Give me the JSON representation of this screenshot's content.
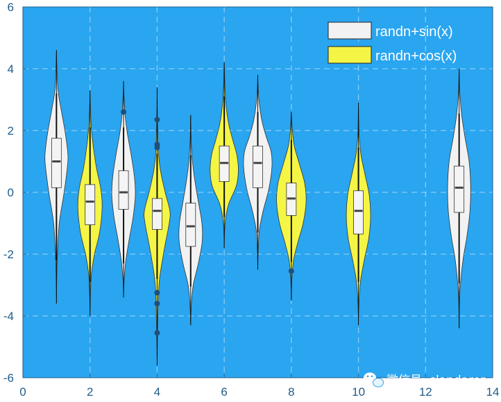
{
  "chart_data": {
    "type": "violin",
    "title": "",
    "xlabel": "",
    "ylabel": "",
    "xlim": [
      0,
      14
    ],
    "ylim": [
      -6,
      6
    ],
    "x_ticks": [
      "0",
      "2",
      "4",
      "6",
      "8",
      "10",
      "12",
      "14"
    ],
    "y_ticks": [
      "6",
      "4",
      "2",
      "0",
      "-2",
      "-4",
      "-6"
    ],
    "grid": true,
    "background_color": "#2aa5f0",
    "legend_position": "top-right",
    "series": [
      {
        "name": "randn+sin(x)",
        "color": "#f2f2f2"
      },
      {
        "name": "randn+cos(x)",
        "color": "#f5f546"
      }
    ],
    "violins": [
      {
        "x": 1,
        "series": 0,
        "min": -3.6,
        "max": 4.6,
        "q1": 0.15,
        "median": 1.0,
        "q3": 1.75,
        "wlo": -2.2,
        "whi": 3.2,
        "width": 0.38,
        "outliers": [],
        "profile": [
          [
            -3.6,
            0.0
          ],
          [
            -2.6,
            0.03
          ],
          [
            -2.0,
            0.08
          ],
          [
            -1.0,
            0.22
          ],
          [
            0.0,
            0.6
          ],
          [
            0.8,
            0.85
          ],
          [
            1.2,
            0.9
          ],
          [
            1.9,
            0.7
          ],
          [
            2.6,
            0.4
          ],
          [
            3.3,
            0.12
          ],
          [
            4.0,
            0.04
          ],
          [
            4.6,
            0.0
          ]
        ]
      },
      {
        "x": 2,
        "series": 1,
        "min": -4.0,
        "max": 3.3,
        "q1": -1.05,
        "median": -0.3,
        "q3": 0.25,
        "wlo": -2.9,
        "whi": 2.1,
        "width": 0.38,
        "outliers": [],
        "profile": [
          [
            -4.0,
            0.0
          ],
          [
            -3.2,
            0.04
          ],
          [
            -2.6,
            0.12
          ],
          [
            -2.0,
            0.35
          ],
          [
            -1.3,
            0.75
          ],
          [
            -0.5,
            0.95
          ],
          [
            0.1,
            0.85
          ],
          [
            0.8,
            0.5
          ],
          [
            1.5,
            0.25
          ],
          [
            2.1,
            0.1
          ],
          [
            2.8,
            0.03
          ],
          [
            3.3,
            0.0
          ]
        ]
      },
      {
        "x": 3,
        "series": 0,
        "min": -3.4,
        "max": 3.6,
        "q1": -0.55,
        "median": 0.0,
        "q3": 0.7,
        "wlo": -2.3,
        "whi": 2.1,
        "width": 0.38,
        "outliers": [
          2.6
        ],
        "profile": [
          [
            -3.4,
            0.0
          ],
          [
            -2.8,
            0.05
          ],
          [
            -2.2,
            0.18
          ],
          [
            -1.5,
            0.45
          ],
          [
            -0.8,
            0.75
          ],
          [
            -0.1,
            0.92
          ],
          [
            0.5,
            0.85
          ],
          [
            1.2,
            0.6
          ],
          [
            1.9,
            0.3
          ],
          [
            2.5,
            0.12
          ],
          [
            3.1,
            0.04
          ],
          [
            3.6,
            0.0
          ]
        ]
      },
      {
        "x": 4,
        "series": 1,
        "min": -5.6,
        "max": 3.4,
        "q1": -1.2,
        "median": -0.6,
        "q3": -0.2,
        "wlo": -2.8,
        "whi": 1.25,
        "width": 0.4,
        "outliers": [
          2.35,
          1.55,
          1.45,
          -3.25,
          -3.6,
          -4.55
        ],
        "profile": [
          [
            -5.6,
            0.0
          ],
          [
            -4.6,
            0.03
          ],
          [
            -3.6,
            0.08
          ],
          [
            -2.8,
            0.18
          ],
          [
            -1.8,
            0.55
          ],
          [
            -1.0,
            0.9
          ],
          [
            -0.6,
            0.95
          ],
          [
            0.0,
            0.6
          ],
          [
            0.7,
            0.25
          ],
          [
            1.3,
            0.1
          ],
          [
            2.3,
            0.03
          ],
          [
            3.4,
            0.0
          ]
        ]
      },
      {
        "x": 5,
        "series": 0,
        "min": -4.3,
        "max": 2.5,
        "q1": -1.75,
        "median": -1.1,
        "q3": -0.35,
        "wlo": -3.05,
        "whi": 1.2,
        "width": 0.38,
        "outliers": [],
        "profile": [
          [
            -4.3,
            0.0
          ],
          [
            -3.6,
            0.06
          ],
          [
            -3.0,
            0.2
          ],
          [
            -2.3,
            0.6
          ],
          [
            -1.6,
            0.9
          ],
          [
            -1.0,
            0.88
          ],
          [
            -0.3,
            0.6
          ],
          [
            0.4,
            0.32
          ],
          [
            1.0,
            0.14
          ],
          [
            1.6,
            0.05
          ],
          [
            2.1,
            0.02
          ],
          [
            2.5,
            0.0
          ]
        ]
      },
      {
        "x": 6,
        "series": 1,
        "min": -1.8,
        "max": 4.2,
        "q1": 0.35,
        "median": 0.95,
        "q3": 1.5,
        "wlo": -0.8,
        "whi": 3.1,
        "width": 0.42,
        "outliers": [],
        "profile": [
          [
            -1.8,
            0.0
          ],
          [
            -1.0,
            0.06
          ],
          [
            -0.4,
            0.3
          ],
          [
            0.2,
            0.85
          ],
          [
            0.7,
            1.0
          ],
          [
            1.2,
            0.9
          ],
          [
            1.7,
            0.6
          ],
          [
            2.2,
            0.32
          ],
          [
            2.8,
            0.13
          ],
          [
            3.4,
            0.05
          ],
          [
            3.9,
            0.02
          ],
          [
            4.2,
            0.0
          ]
        ]
      },
      {
        "x": 7,
        "series": 0,
        "min": -2.5,
        "max": 3.8,
        "q1": 0.15,
        "median": 0.95,
        "q3": 1.5,
        "wlo": -1.3,
        "whi": 2.6,
        "width": 0.42,
        "outliers": [],
        "profile": [
          [
            -2.5,
            0.0
          ],
          [
            -1.8,
            0.04
          ],
          [
            -1.2,
            0.12
          ],
          [
            -0.6,
            0.38
          ],
          [
            0.1,
            0.78
          ],
          [
            0.8,
            1.0
          ],
          [
            1.3,
            0.95
          ],
          [
            1.8,
            0.6
          ],
          [
            2.3,
            0.3
          ],
          [
            2.9,
            0.1
          ],
          [
            3.4,
            0.03
          ],
          [
            3.8,
            0.0
          ]
        ]
      },
      {
        "x": 8,
        "series": 1,
        "min": -3.5,
        "max": 2.6,
        "q1": -0.75,
        "median": -0.2,
        "q3": 0.3,
        "wlo": -2.25,
        "whi": 1.7,
        "width": 0.44,
        "outliers": [
          -2.55
        ],
        "profile": [
          [
            -3.5,
            0.0
          ],
          [
            -2.8,
            0.04
          ],
          [
            -2.2,
            0.15
          ],
          [
            -1.6,
            0.45
          ],
          [
            -1.0,
            0.8
          ],
          [
            -0.3,
            1.0
          ],
          [
            0.3,
            0.9
          ],
          [
            0.9,
            0.55
          ],
          [
            1.5,
            0.2
          ],
          [
            2.0,
            0.07
          ],
          [
            2.4,
            0.02
          ],
          [
            2.6,
            0.0
          ]
        ]
      },
      {
        "x": 10,
        "series": 1,
        "min": -4.3,
        "max": 2.9,
        "q1": -1.35,
        "median": -0.6,
        "q3": 0.05,
        "wlo": -2.9,
        "whi": 1.45,
        "width": 0.38,
        "outliers": [],
        "profile": [
          [
            -4.3,
            0.0
          ],
          [
            -3.6,
            0.04
          ],
          [
            -2.9,
            0.15
          ],
          [
            -2.2,
            0.45
          ],
          [
            -1.5,
            0.8
          ],
          [
            -0.8,
            0.95
          ],
          [
            -0.1,
            0.85
          ],
          [
            0.6,
            0.5
          ],
          [
            1.2,
            0.2
          ],
          [
            1.8,
            0.06
          ],
          [
            2.4,
            0.02
          ],
          [
            2.9,
            0.0
          ]
        ]
      },
      {
        "x": 13,
        "series": 0,
        "min": -4.4,
        "max": 4.0,
        "q1": -0.65,
        "median": 0.15,
        "q3": 0.85,
        "wlo": -2.95,
        "whi": 2.55,
        "width": 0.38,
        "outliers": [],
        "profile": [
          [
            -4.4,
            0.0
          ],
          [
            -3.6,
            0.03
          ],
          [
            -3.0,
            0.1
          ],
          [
            -2.2,
            0.3
          ],
          [
            -1.4,
            0.62
          ],
          [
            -0.6,
            0.85
          ],
          [
            0.2,
            0.9
          ],
          [
            1.0,
            0.78
          ],
          [
            1.8,
            0.45
          ],
          [
            2.5,
            0.2
          ],
          [
            3.2,
            0.06
          ],
          [
            4.0,
            0.0
          ]
        ]
      }
    ]
  },
  "legend": {
    "items": [
      {
        "label": "randn+sin(x)",
        "color": "#f2f2f2"
      },
      {
        "label": "randn+cos(x)",
        "color": "#f5f546"
      }
    ]
  },
  "watermark": {
    "text": "微信号: slandarer",
    "icon": "wechat-icon"
  }
}
